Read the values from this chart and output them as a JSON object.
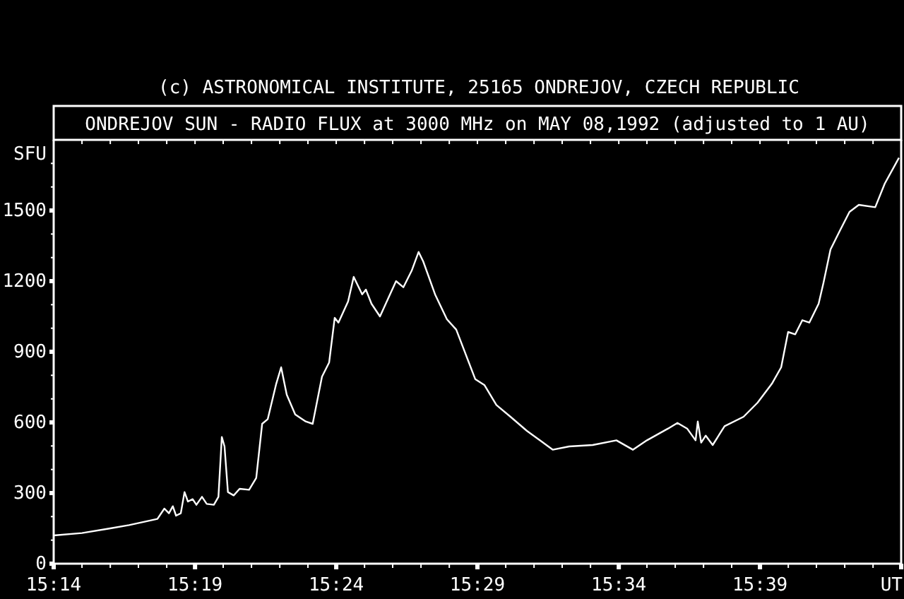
{
  "chart_data": {
    "type": "line",
    "title": "ONDREJOV SUN - RADIO FLUX at 3000 MHz on MAY 08,1992 (adjusted to 1 AU)",
    "annotations": [
      "(c) ASTRONOMICAL INSTITUTE, 25165 ONDREJOV, CZECH REPUBLIC"
    ],
    "ylabel": "SFU",
    "grid": false,
    "marker": "none",
    "line_style": "solid",
    "xlim": [
      15.2333,
      15.7333
    ],
    "ylim": [
      0,
      1800
    ],
    "xticks": [
      {
        "value": 15.2333,
        "label": "15:14"
      },
      {
        "value": 15.25,
        "label": null
      },
      {
        "value": 15.2667,
        "label": null
      },
      {
        "value": 15.2833,
        "label": null
      },
      {
        "value": 15.3,
        "label": null
      },
      {
        "value": 15.3167,
        "label": "15:19"
      },
      {
        "value": 15.3333,
        "label": null
      },
      {
        "value": 15.35,
        "label": null
      },
      {
        "value": 15.3667,
        "label": null
      },
      {
        "value": 15.3833,
        "label": null
      },
      {
        "value": 15.4,
        "label": "15:24"
      },
      {
        "value": 15.4167,
        "label": null
      },
      {
        "value": 15.4333,
        "label": null
      },
      {
        "value": 15.45,
        "label": null
      },
      {
        "value": 15.4667,
        "label": null
      },
      {
        "value": 15.4833,
        "label": "15:29"
      },
      {
        "value": 15.5,
        "label": null
      },
      {
        "value": 15.5167,
        "label": null
      },
      {
        "value": 15.5333,
        "label": null
      },
      {
        "value": 15.55,
        "label": null
      },
      {
        "value": 15.5667,
        "label": "15:34"
      },
      {
        "value": 15.5833,
        "label": null
      },
      {
        "value": 15.6,
        "label": null
      },
      {
        "value": 15.6167,
        "label": null
      },
      {
        "value": 15.6333,
        "label": null
      },
      {
        "value": 15.65,
        "label": "15:39"
      },
      {
        "value": 15.6667,
        "label": null
      },
      {
        "value": 15.6833,
        "label": null
      },
      {
        "value": 15.7,
        "label": null
      },
      {
        "value": 15.7167,
        "label": null
      },
      {
        "value": 15.7333,
        "label": "UT"
      }
    ],
    "yticks": [
      0,
      {
        "value": 100,
        "label": null
      },
      {
        "value": 200,
        "label": null
      },
      300,
      {
        "value": 400,
        "label": null
      },
      {
        "value": 500,
        "label": null
      },
      600,
      {
        "value": 700,
        "label": null
      },
      {
        "value": 800,
        "label": null
      },
      900,
      {
        "value": 1000,
        "label": null
      },
      {
        "value": 1100,
        "label": null
      },
      1200,
      {
        "value": 1300,
        "label": null
      },
      {
        "value": 1400,
        "label": null
      },
      1500,
      {
        "value": 1600,
        "label": null
      },
      {
        "value": 1700,
        "label": null
      }
    ],
    "series": [
      {
        "color": "#ffffff",
        "x": [
          15.2333,
          15.25,
          15.2667,
          15.2778,
          15.2945,
          15.2986,
          15.3013,
          15.3036,
          15.3055,
          15.3083,
          15.3105,
          15.3125,
          15.3153,
          15.3175,
          15.3208,
          15.3236,
          15.3278,
          15.3305,
          15.3325,
          15.3341,
          15.3361,
          15.3395,
          15.343,
          15.3486,
          15.3528,
          15.3563,
          15.3596,
          15.3646,
          15.3675,
          15.3708,
          15.3758,
          15.382,
          15.3861,
          15.3916,
          15.3958,
          15.3991,
          15.4013,
          15.407,
          15.4103,
          15.4153,
          15.4175,
          15.4208,
          15.4258,
          15.4305,
          15.4353,
          15.4396,
          15.4445,
          15.4486,
          15.4513,
          15.4583,
          15.4653,
          15.4708,
          15.482,
          15.4875,
          15.4945,
          15.5028,
          15.5125,
          15.5278,
          15.5375,
          15.5513,
          15.5653,
          15.575,
          15.5833,
          15.5958,
          15.6013,
          15.607,
          15.612,
          15.6133,
          15.6153,
          15.618,
          15.6221,
          15.6291,
          15.6403,
          15.6486,
          15.657,
          15.6625,
          15.6666,
          15.6708,
          15.675,
          15.6791,
          15.6846,
          15.6875,
          15.6916,
          15.6971,
          15.7028,
          15.7083,
          15.718,
          15.7236,
          15.732
        ],
        "values": [
          120,
          130,
          150,
          164,
          190,
          234,
          214,
          244,
          204,
          214,
          304,
          264,
          274,
          250,
          284,
          254,
          250,
          284,
          538,
          498,
          304,
          290,
          318,
          314,
          364,
          594,
          614,
          764,
          834,
          718,
          634,
          604,
          594,
          794,
          854,
          1044,
          1024,
          1114,
          1218,
          1144,
          1164,
          1104,
          1050,
          1124,
          1200,
          1174,
          1244,
          1324,
          1284,
          1144,
          1038,
          994,
          784,
          758,
          674,
          624,
          564,
          484,
          498,
          504,
          524,
          484,
          524,
          574,
          598,
          574,
          524,
          604,
          514,
          544,
          504,
          584,
          624,
          684,
          764,
          834,
          984,
          974,
          1034,
          1024,
          1104,
          1194,
          1334,
          1414,
          1494,
          1524,
          1514,
          1614,
          1724
        ]
      }
    ]
  }
}
